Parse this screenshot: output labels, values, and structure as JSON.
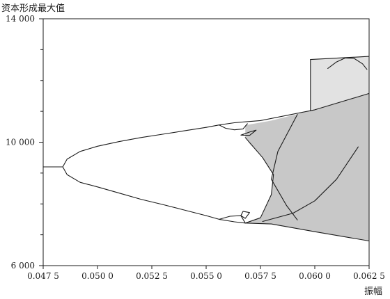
{
  "chart_data": {
    "type": "line",
    "ylabel": "资本形成最大值",
    "xlabel": "振幅",
    "xlim": [
      0.0475,
      0.0625
    ],
    "ylim": [
      6000,
      14000
    ],
    "x_ticks": [
      {
        "value": 0.0475,
        "label": "0.047 5"
      },
      {
        "value": 0.05,
        "label": "0.050 0"
      },
      {
        "value": 0.0525,
        "label": "0.052 5"
      },
      {
        "value": 0.055,
        "label": "0.055 0"
      },
      {
        "value": 0.0575,
        "label": "0.057 5"
      },
      {
        "value": 0.06,
        "label": "0.060 0"
      },
      {
        "value": 0.0625,
        "label": "0.062 5"
      }
    ],
    "y_ticks": [
      {
        "value": 6000,
        "label": "6 000"
      },
      {
        "value": 10000,
        "label": "10 000"
      },
      {
        "value": 14000,
        "label": "14 000"
      }
    ],
    "y_minor_ticks": [
      7000,
      8000,
      9000,
      11000,
      12000,
      13000
    ],
    "grid": false,
    "regions": [
      {
        "fill": "#c8c8c8",
        "points": [
          [
            0.0568,
            10550
          ],
          [
            0.058,
            10700
          ],
          [
            0.06,
            11050
          ],
          [
            0.0625,
            11580
          ],
          [
            0.0625,
            6800
          ],
          [
            0.058,
            7350
          ],
          [
            0.0568,
            7380
          ],
          [
            0.0575,
            7550
          ],
          [
            0.058,
            8300
          ],
          [
            0.0581,
            8950
          ],
          [
            0.0576,
            9500
          ],
          [
            0.057,
            9950
          ],
          [
            0.0568,
            10150
          ]
        ]
      },
      {
        "fill": "#e2e2e2",
        "points": [
          [
            0.0598,
            12680
          ],
          [
            0.0625,
            12780
          ],
          [
            0.0625,
            11580
          ],
          [
            0.0598,
            11020
          ]
        ]
      }
    ],
    "series": [
      {
        "points": [
          [
            0.0475,
            9200
          ],
          [
            0.0484,
            9200
          ]
        ]
      },
      {
        "points": [
          [
            0.0484,
            9200
          ],
          [
            0.0486,
            9450
          ],
          [
            0.0492,
            9700
          ],
          [
            0.05,
            9870
          ],
          [
            0.051,
            10020
          ],
          [
            0.052,
            10150
          ],
          [
            0.053,
            10260
          ],
          [
            0.054,
            10370
          ],
          [
            0.055,
            10480
          ]
        ]
      },
      {
        "points": [
          [
            0.0484,
            9200
          ],
          [
            0.0486,
            8950
          ],
          [
            0.0492,
            8700
          ],
          [
            0.05,
            8550
          ],
          [
            0.051,
            8350
          ],
          [
            0.052,
            8150
          ],
          [
            0.053,
            7980
          ],
          [
            0.054,
            7800
          ],
          [
            0.055,
            7620
          ]
        ]
      },
      {
        "points": [
          [
            0.055,
            10480
          ],
          [
            0.0556,
            10560
          ],
          [
            0.0563,
            10630
          ],
          [
            0.0568,
            10660
          ],
          [
            0.0575,
            10700
          ],
          [
            0.06,
            11050
          ],
          [
            0.0625,
            11580
          ]
        ]
      },
      {
        "points": [
          [
            0.055,
            7620
          ],
          [
            0.0556,
            7500
          ],
          [
            0.0563,
            7420
          ],
          [
            0.0568,
            7380
          ],
          [
            0.058,
            7350
          ],
          [
            0.06,
            7100
          ],
          [
            0.0625,
            6800
          ]
        ]
      },
      {
        "points": [
          [
            0.0556,
            10560
          ],
          [
            0.0559,
            10450
          ],
          [
            0.0563,
            10400
          ],
          [
            0.0567,
            10430
          ],
          [
            0.0569,
            10600
          ]
        ]
      },
      {
        "points": [
          [
            0.0556,
            7500
          ],
          [
            0.0561,
            7600
          ],
          [
            0.0566,
            7620
          ],
          [
            0.0568,
            7380
          ]
        ]
      },
      {
        "points": [
          [
            0.0566,
            10230
          ],
          [
            0.057,
            10330
          ],
          [
            0.0573,
            10390
          ],
          [
            0.057,
            10220
          ],
          [
            0.0566,
            10230
          ]
        ]
      },
      {
        "points": [
          [
            0.0566,
            7620
          ],
          [
            0.0568,
            7530
          ],
          [
            0.057,
            7720
          ],
          [
            0.0567,
            7760
          ],
          [
            0.0566,
            7620
          ]
        ]
      },
      {
        "points": [
          [
            0.0568,
            10150
          ],
          [
            0.0576,
            9500
          ],
          [
            0.0581,
            8950
          ],
          [
            0.058,
            8300
          ],
          [
            0.0575,
            7550
          ],
          [
            0.0568,
            7380
          ]
        ]
      },
      {
        "points": [
          [
            0.0592,
            10900
          ],
          [
            0.0583,
            9700
          ],
          [
            0.058,
            8800
          ],
          [
            0.0587,
            7950
          ],
          [
            0.0592,
            7480
          ]
        ]
      },
      {
        "points": [
          [
            0.0576,
            7430
          ],
          [
            0.059,
            7700
          ],
          [
            0.06,
            8100
          ],
          [
            0.061,
            8800
          ],
          [
            0.062,
            9850
          ]
        ]
      },
      {
        "points": [
          [
            0.0598,
            12680
          ],
          [
            0.0625,
            12780
          ]
        ]
      },
      {
        "points": [
          [
            0.0598,
            12680
          ],
          [
            0.0598,
            11020
          ]
        ]
      },
      {
        "points": [
          [
            0.0606,
            12390
          ],
          [
            0.061,
            12600
          ],
          [
            0.0614,
            12730
          ],
          [
            0.0618,
            12720
          ],
          [
            0.0622,
            12540
          ],
          [
            0.0624,
            12360
          ]
        ]
      }
    ]
  }
}
